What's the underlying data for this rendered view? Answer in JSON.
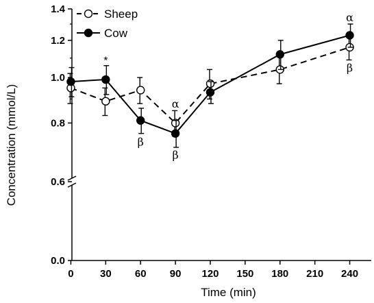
{
  "chart_data": {
    "type": "line",
    "title": "",
    "xlabel": "Time (min)",
    "ylabel": "Concentration (mmol/L)",
    "x": [
      0,
      30,
      60,
      90,
      120,
      180,
      240
    ],
    "x_ticks": [
      0,
      30,
      60,
      90,
      120,
      150,
      180,
      210,
      240
    ],
    "x_tick_labels": [
      "0",
      "30",
      "60",
      "90",
      "120",
      "150",
      "180",
      "210",
      "240"
    ],
    "xlim": [
      -15,
      255
    ],
    "y_scale": "log",
    "y_axis_break": true,
    "ylim_upper_segment": [
      0.6,
      1.4
    ],
    "y_ticks_upper": [
      0.8,
      1.0,
      1.2,
      1.4
    ],
    "y_tick_labels_upper": [
      "0.8",
      "1.0",
      "1.2",
      "1.4"
    ],
    "y_tick_break_label": "0.6",
    "y_tick_zero_label": "0.0",
    "grid": false,
    "legend_position": "top-left",
    "series": [
      {
        "name": "Sheep",
        "style": "dashed",
        "marker": "open-circle",
        "color": "#000000",
        "values": [
          0.95,
          0.89,
          0.94,
          0.8,
          0.97,
          1.04,
          1.16
        ],
        "errors": [
          0.07,
          0.06,
          0.06,
          0.05,
          0.07,
          0.07,
          0.07
        ]
      },
      {
        "name": "Cow",
        "style": "solid",
        "marker": "filled-circle",
        "color": "#000000",
        "values": [
          0.98,
          0.99,
          0.81,
          0.76,
          0.93,
          1.12,
          1.23
        ],
        "errors": [
          0.07,
          0.07,
          0.05,
          0.05,
          0.05,
          0.08,
          0.07
        ]
      }
    ],
    "annotations": [
      {
        "text": "*",
        "x": 30,
        "y": 1.09
      },
      {
        "text": "α",
        "x": 90,
        "y": 0.88
      },
      {
        "text": "β",
        "x": 60,
        "y": 0.73
      },
      {
        "text": "β",
        "x": 90,
        "y": 0.685
      },
      {
        "text": "α",
        "x": 240,
        "y": 1.345
      },
      {
        "text": "β",
        "x": 240,
        "y": 1.05
      }
    ]
  }
}
